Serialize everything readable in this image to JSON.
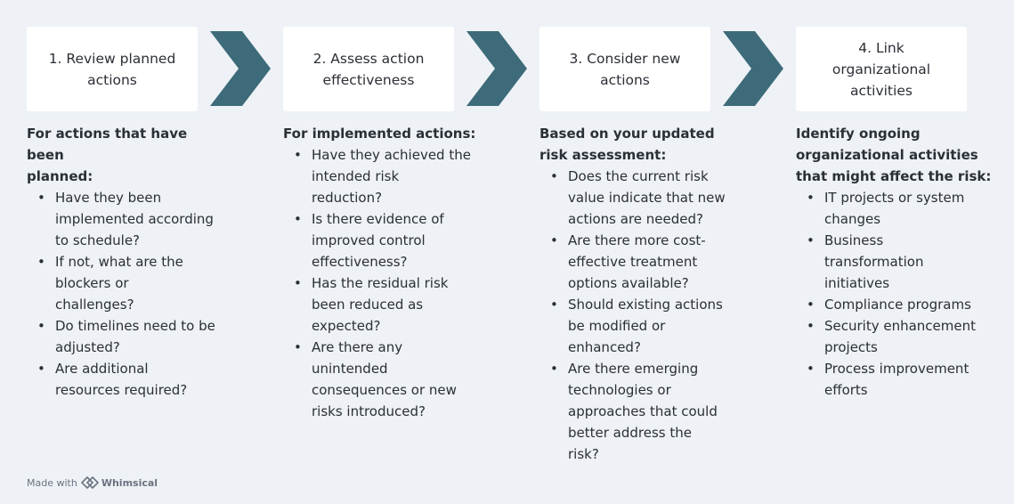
{
  "steps": [
    {
      "title": "1.  Review planned\nactions",
      "heading": "For actions that have been\nplanned:",
      "items": [
        "Have they been\nimplemented according\nto schedule?",
        "If not, what are the\nblockers or\nchallenges?",
        "Do timelines need to be\nadjusted?",
        "Are additional\nresources required?"
      ]
    },
    {
      "title": "2.  Assess action\neffectiveness",
      "heading": "For implemented actions:",
      "items": [
        "Have they achieved the\nintended risk\nreduction?",
        "Is there evidence of\nimproved control\neffectiveness?",
        "Has the residual risk\nbeen reduced as\nexpected?",
        "Are there any\nunintended\nconsequences or new\nrisks introduced?"
      ]
    },
    {
      "title": "3.  Consider new\nactions",
      "heading": "Based on your updated\nrisk assessment:",
      "items": [
        "Does the current risk\nvalue indicate that new\nactions are needed?",
        "Are there more cost-\neffective treatment\noptions available?",
        "Should existing actions\nbe modified or\nenhanced?",
        "Are there emerging\ntechnologies or\napproaches that could\nbetter address the\nrisk?"
      ]
    },
    {
      "title": "4.  Link\norganizational\nactivities",
      "heading": "Identify ongoing\norganizational activities\nthat might affect the risk:",
      "items": [
        "IT projects or system\nchanges",
        "Business\ntransformation\ninitiatives",
        "Compliance programs",
        "Security enhancement\nprojects",
        "Process improvement\nefforts"
      ]
    }
  ],
  "footer": {
    "made_with": "Made with",
    "brand": "Whimsical"
  },
  "colors": {
    "arrow": "#3d6b7a",
    "background": "#eef2f6",
    "box": "#ffffff"
  }
}
